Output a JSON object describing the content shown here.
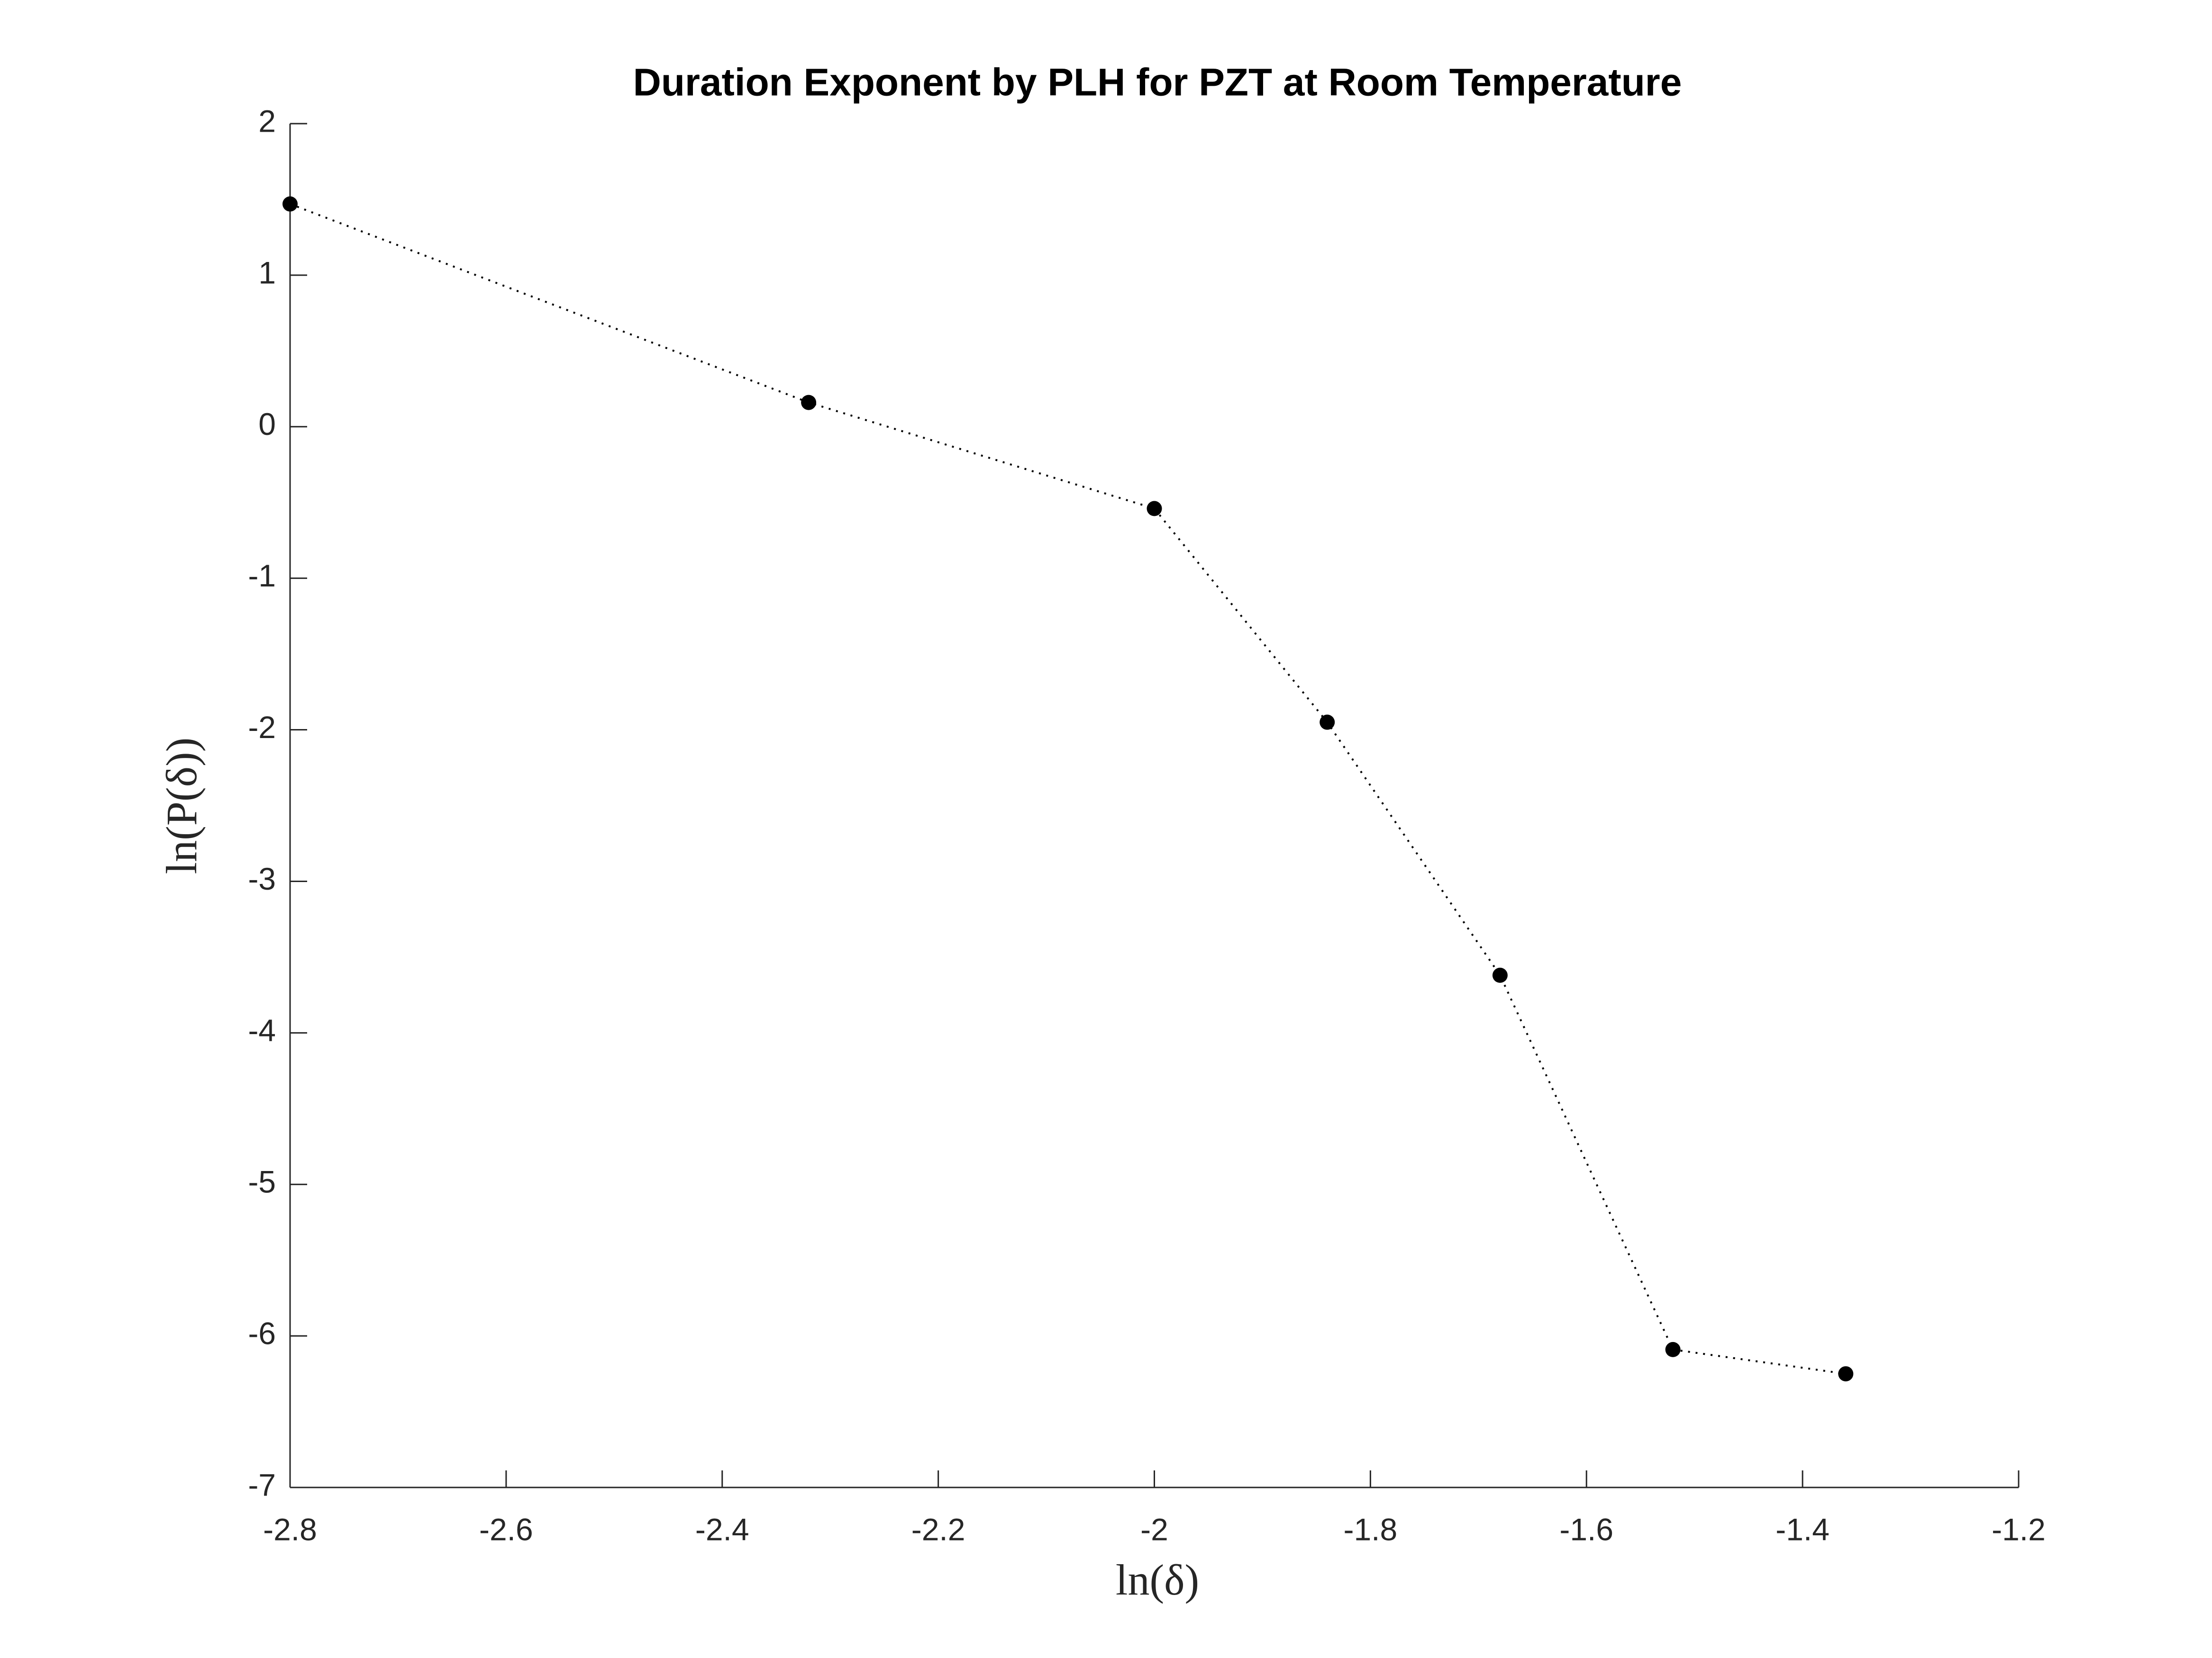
{
  "chart_data": {
    "type": "line",
    "title": "Duration Exponent by PLH for PZT at Room Temperature",
    "x_label": "ln(δ)",
    "y_label": "ln(P(δ))",
    "x": [
      -2.8,
      -2.32,
      -2.0,
      -1.84,
      -1.68,
      -1.52,
      -1.36
    ],
    "series": [
      {
        "color": "#000000",
        "values": [
          1.47,
          0.16,
          -0.54,
          -1.95,
          -3.62,
          -6.09,
          -6.25
        ]
      }
    ],
    "xlim": [
      -2.8,
      -1.2
    ],
    "xticks": [
      -2.8,
      -2.6,
      -2.4,
      -2.2,
      -2,
      -1.8,
      -1.6,
      -1.4,
      -1.2
    ],
    "ylim": [
      -7,
      2
    ],
    "yticks": [
      -7,
      -6,
      -5,
      -4,
      -3,
      -2,
      -1,
      0,
      1,
      2
    ],
    "grid": false,
    "line_style": "dotted",
    "marker": "circle"
  }
}
